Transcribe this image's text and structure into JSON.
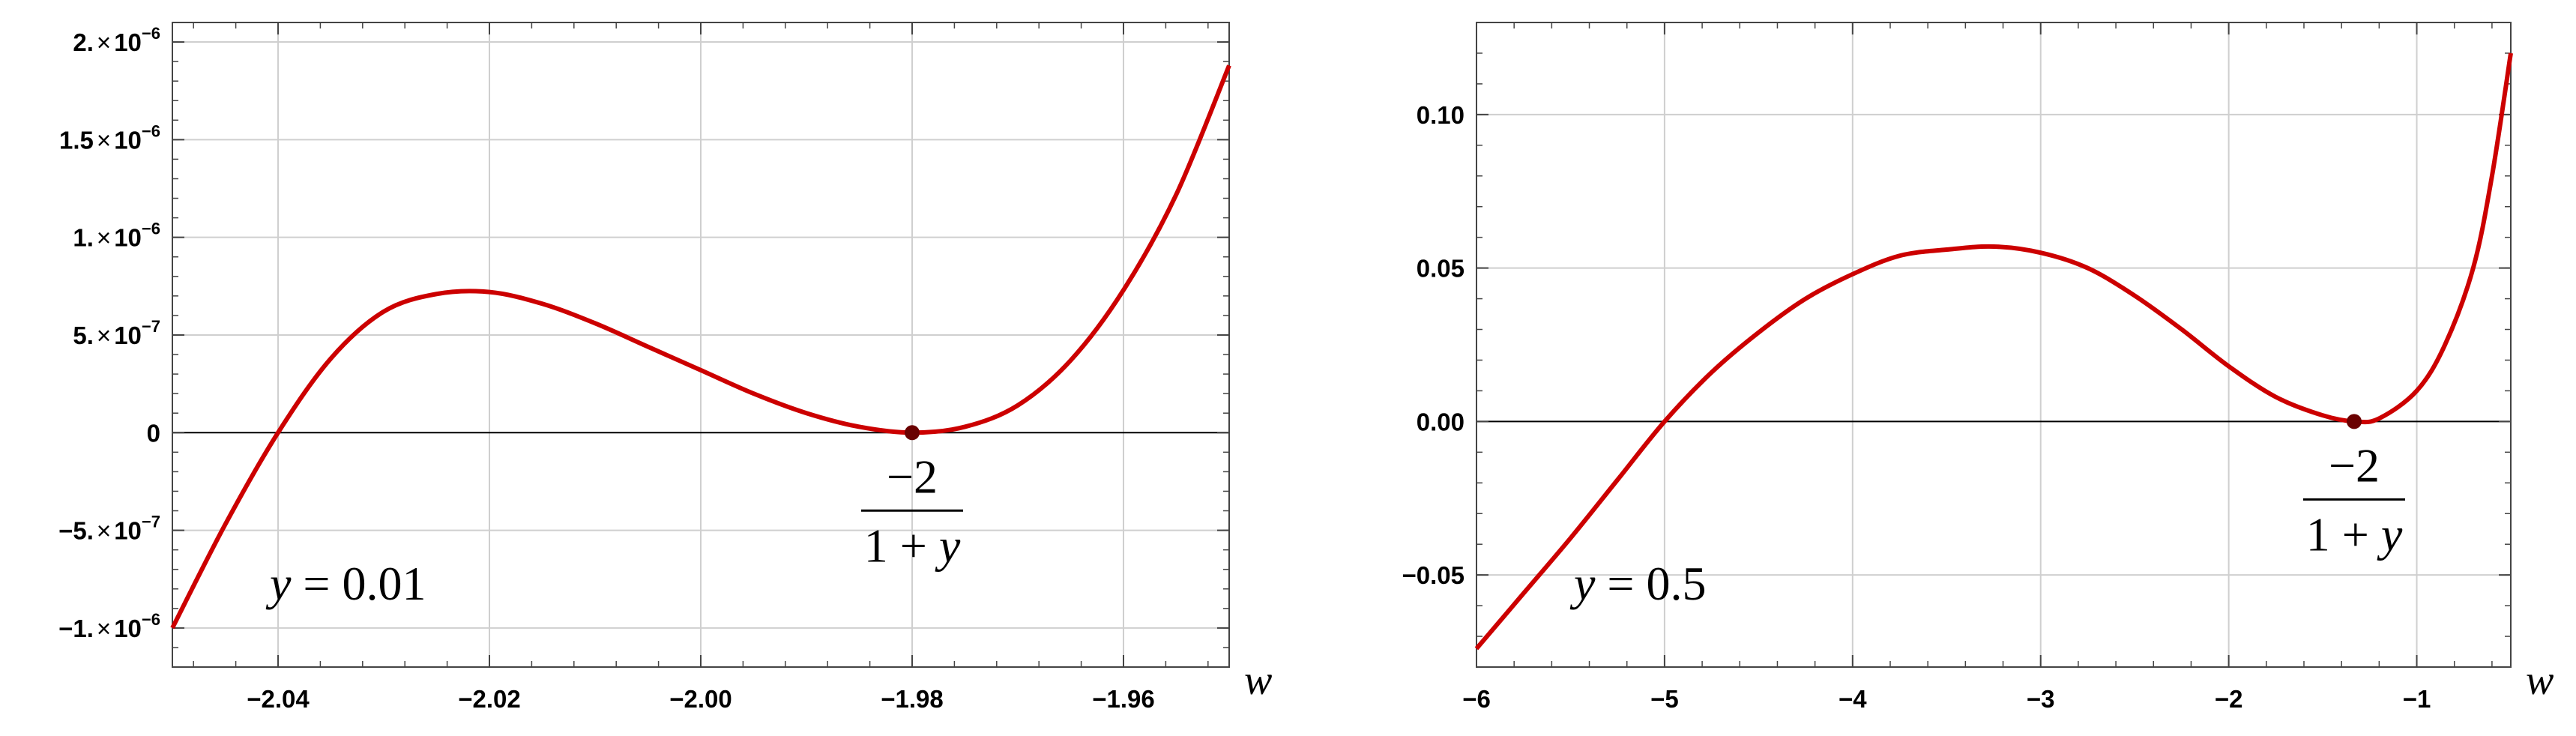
{
  "chart_data": [
    {
      "type": "line",
      "xlabel": "w",
      "ylabel": "",
      "xlim": [
        -2.05,
        -1.95
      ],
      "ylim": [
        -1.2e-06,
        2.1e-06
      ],
      "grid": true,
      "x_ticks": [
        -2.04,
        -2.02,
        -2.0,
        -1.98,
        -1.96
      ],
      "x_tick_labels": [
        "−2.04",
        "−2.02",
        "−2.00",
        "−1.98",
        "−1.96"
      ],
      "y_ticks": [
        -1e-06,
        -5e-07,
        0,
        5e-07,
        1e-06,
        1.5e-06,
        2e-06
      ],
      "y_tick_labels": [
        {
          "mant": "−1.",
          "times": "×",
          "base": "10",
          "exp": "−6"
        },
        {
          "mant": "−5.",
          "times": "×",
          "base": "10",
          "exp": "−7"
        },
        {
          "mant": "0",
          "times": "",
          "base": "",
          "exp": ""
        },
        {
          "mant": "5.",
          "times": "×",
          "base": "10",
          "exp": "−7"
        },
        {
          "mant": "1.",
          "times": "×",
          "base": "10",
          "exp": "−6"
        },
        {
          "mant": "1.5",
          "times": "×",
          "base": "10",
          "exp": "−6"
        },
        {
          "mant": "2.",
          "times": "×",
          "base": "10",
          "exp": "−6"
        }
      ],
      "series": [
        {
          "color": "#cc0000",
          "x": [
            -2.05,
            -2.045,
            -2.04,
            -2.035,
            -2.03,
            -2.025,
            -2.02,
            -2.015,
            -2.01,
            -2.005,
            -2.0,
            -1.995,
            -1.99,
            -1.985,
            -1.98,
            -1.975,
            -1.97,
            -1.965,
            -1.96,
            -1.955,
            -1.95
          ],
          "y": [
            -1e-06,
            -4.7e-07,
            0,
            3.8e-07,
            6.2e-07,
            7.1e-07,
            7.2e-07,
            6.6e-07,
            5.6e-07,
            4.4e-07,
            3.2e-07,
            2e-07,
            1e-07,
            3e-08,
            0,
            3e-08,
            1.4e-07,
            3.7e-07,
            7.3e-07,
            1.22e-06,
            1.88e-06
          ]
        }
      ],
      "marker": {
        "x": -1.98,
        "y": 0,
        "color": "#6a0000"
      },
      "marker_label": {
        "numerator": "−2",
        "denominator_a": "1 + ",
        "denominator_b": "y"
      },
      "annotation": {
        "var": "y",
        "eq": " =  0.01"
      }
    },
    {
      "type": "line",
      "xlabel": "w",
      "ylabel": "",
      "xlim": [
        -6,
        -0.5
      ],
      "ylim": [
        -0.08,
        0.13
      ],
      "grid": true,
      "x_ticks": [
        -6,
        -5,
        -4,
        -3,
        -2,
        -1
      ],
      "x_tick_labels": [
        "−6",
        "−5",
        "−4",
        "−3",
        "−2",
        "−1"
      ],
      "y_ticks": [
        -0.05,
        0.0,
        0.05,
        0.1
      ],
      "y_tick_labels": [
        {
          "mant": "−0.05",
          "times": "",
          "base": "",
          "exp": ""
        },
        {
          "mant": "0.00",
          "times": "",
          "base": "",
          "exp": ""
        },
        {
          "mant": "0.05",
          "times": "",
          "base": "",
          "exp": ""
        },
        {
          "mant": "0.10",
          "times": "",
          "base": "",
          "exp": ""
        }
      ],
      "series": [
        {
          "color": "#cc0000",
          "x": [
            -6.0,
            -5.75,
            -5.5,
            -5.25,
            -5.0,
            -4.75,
            -4.5,
            -4.25,
            -4.0,
            -3.75,
            -3.5,
            -3.25,
            -3.0,
            -2.75,
            -2.5,
            -2.25,
            -2.0,
            -1.75,
            -1.5,
            -1.33,
            -1.2,
            -1.0,
            -0.85,
            -0.7,
            -0.6,
            -0.5
          ],
          "y": [
            -0.074,
            -0.056,
            -0.038,
            -0.019,
            0.0,
            0.016,
            0.029,
            0.04,
            0.048,
            0.054,
            0.056,
            0.057,
            0.055,
            0.05,
            0.041,
            0.03,
            0.018,
            0.008,
            0.002,
            0.0,
            0.001,
            0.01,
            0.025,
            0.05,
            0.08,
            0.12
          ]
        }
      ],
      "marker": {
        "x": -1.333,
        "y": 0,
        "color": "#6a0000"
      },
      "marker_label": {
        "numerator": "−2",
        "denominator_a": "1 + ",
        "denominator_b": "y"
      },
      "annotation": {
        "var": "y",
        "eq": " =  0.5"
      }
    }
  ]
}
